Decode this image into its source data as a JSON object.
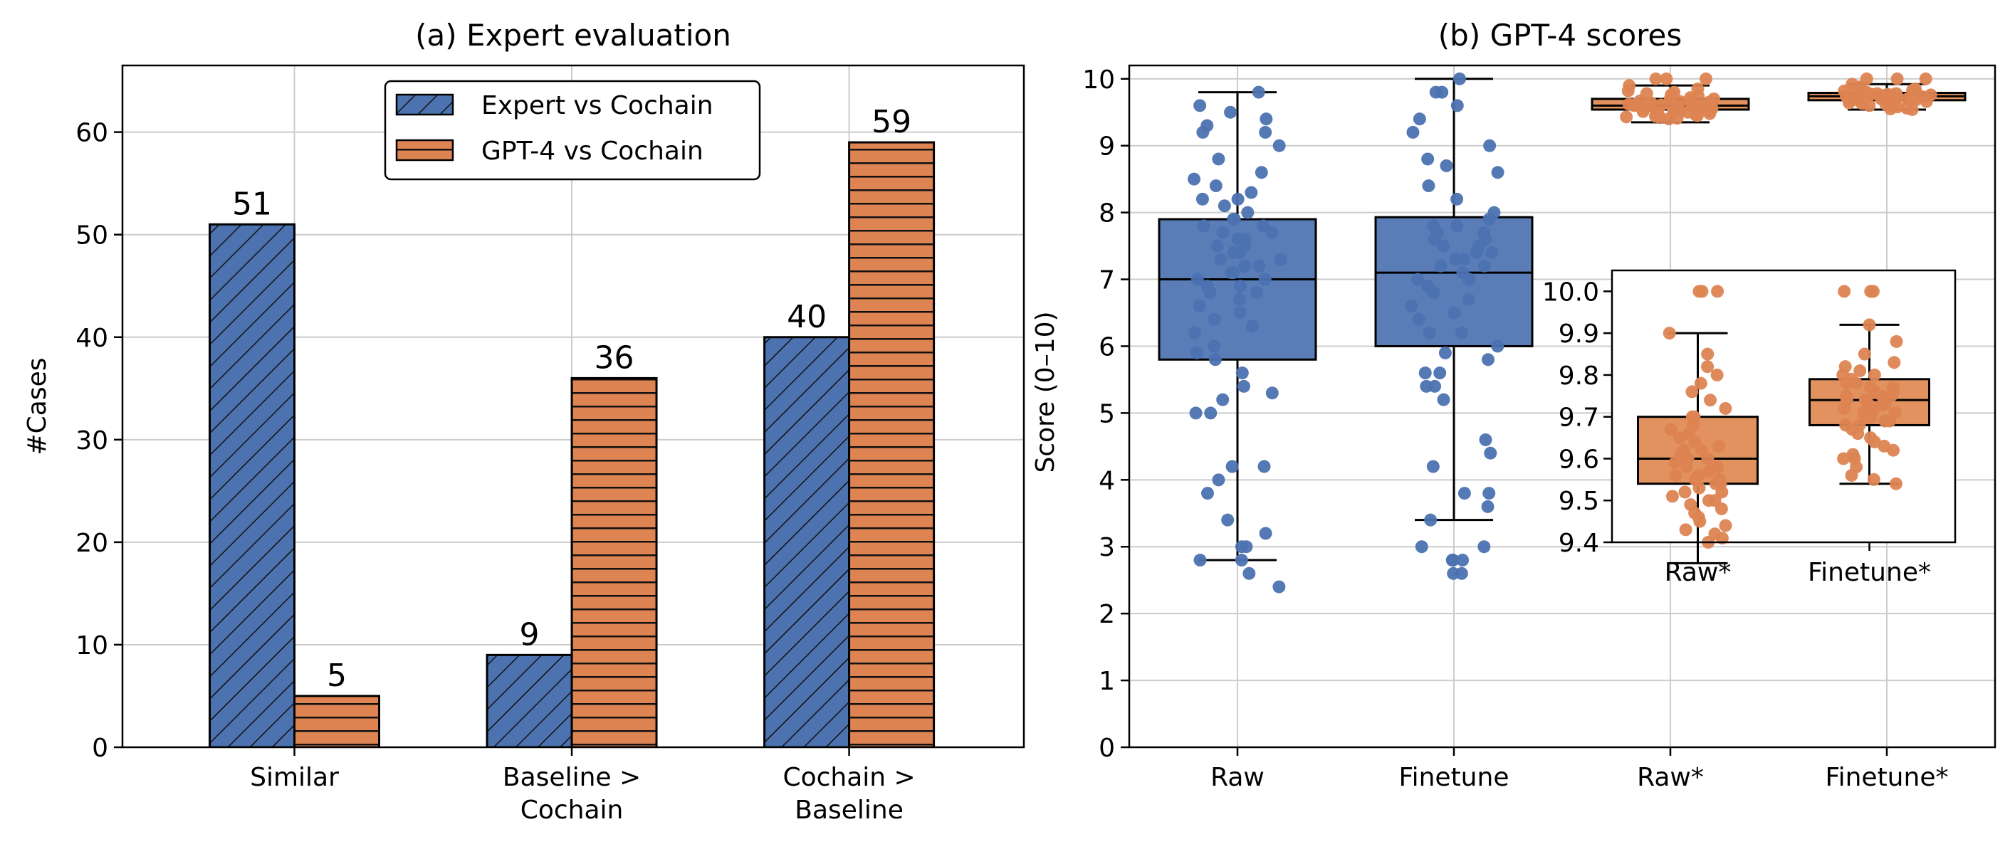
{
  "chart_data": [
    {
      "type": "bar",
      "title": "(a) Expert evaluation",
      "xlabel": "",
      "ylabel": "#Cases",
      "ylim": [
        0,
        66.5
      ],
      "yticks": [
        0,
        10,
        20,
        30,
        40,
        50,
        60
      ],
      "categories": [
        [
          "Similar"
        ],
        [
          "Baseline >",
          "Cochain"
        ],
        [
          "Cochain >",
          "Baseline"
        ]
      ],
      "series": [
        {
          "name": "Expert vs Cochain",
          "values": [
            51,
            9,
            40
          ],
          "color": "#4c72b0",
          "hatch": "diagonal"
        },
        {
          "name": "GPT-4 vs Cochain",
          "values": [
            5,
            36,
            59
          ],
          "color": "#dd8452",
          "hatch": "horizontal"
        }
      ],
      "data_labels": [
        "51",
        "9",
        "40",
        "5",
        "36",
        "59"
      ],
      "legend": "top-center",
      "grid": true
    },
    {
      "type": "box",
      "title": "(b) GPT-4 scores",
      "xlabel": "",
      "ylabel": "Score (0–10)",
      "ylim": [
        0,
        10.2
      ],
      "yticks": [
        0,
        1,
        2,
        3,
        4,
        5,
        6,
        7,
        8,
        9,
        10
      ],
      "categories": [
        "Raw",
        "Finetune",
        "Raw*",
        "Finetune*"
      ],
      "boxes": [
        {
          "category": "Raw",
          "q1": 5.8,
          "median": 7.0,
          "q3": 7.9,
          "whisker_low": 2.8,
          "whisker_high": 9.8,
          "color": "#4c72b0"
        },
        {
          "category": "Finetune",
          "q1": 6.0,
          "median": 7.1,
          "q3": 7.93,
          "whisker_low": 3.4,
          "whisker_high": 10.0,
          "color": "#4c72b0"
        },
        {
          "category": "Raw*",
          "q1": 9.54,
          "median": 9.6,
          "q3": 9.7,
          "whisker_low": 9.35,
          "whisker_high": 9.9,
          "color": "#dd8452"
        },
        {
          "category": "Finetune*",
          "q1": 9.68,
          "median": 9.74,
          "q3": 9.79,
          "whisker_low": 9.54,
          "whisker_high": 9.92,
          "color": "#dd8452"
        }
      ],
      "points": {
        "Raw": [
          9.8,
          9.6,
          9.5,
          9.4,
          9.3,
          9.2,
          9.2,
          9.0,
          8.8,
          8.6,
          8.5,
          8.4,
          8.3,
          8.2,
          8.2,
          8.1,
          8.0,
          7.9,
          7.9,
          7.8,
          7.8,
          7.7,
          7.7,
          7.6,
          7.6,
          7.5,
          7.5,
          7.4,
          7.4,
          7.3,
          7.3,
          7.2,
          7.2,
          7.1,
          7.1,
          7.0,
          7.0,
          6.9,
          6.9,
          6.8,
          6.8,
          6.7,
          6.6,
          6.5,
          6.4,
          6.3,
          6.2,
          6.0,
          5.9,
          5.8,
          5.6,
          5.4,
          5.3,
          5.2,
          5.0,
          5.0,
          4.2,
          4.2,
          4.0,
          3.8,
          3.4,
          3.2,
          3.0,
          3.0,
          2.8,
          2.8,
          2.6,
          2.4
        ],
        "Finetune": [
          10.0,
          9.8,
          9.8,
          9.6,
          9.4,
          9.2,
          9.0,
          8.8,
          8.7,
          8.6,
          8.4,
          8.2,
          8.0,
          7.9,
          7.8,
          7.8,
          7.7,
          7.7,
          7.6,
          7.6,
          7.5,
          7.5,
          7.4,
          7.4,
          7.3,
          7.3,
          7.2,
          7.2,
          7.1,
          7.0,
          7.0,
          6.9,
          6.8,
          6.7,
          6.6,
          6.5,
          6.4,
          6.2,
          6.2,
          6.0,
          5.9,
          5.8,
          5.6,
          5.6,
          5.4,
          5.4,
          5.2,
          4.6,
          4.4,
          4.2,
          3.8,
          3.8,
          3.6,
          3.4,
          3.0,
          3.0,
          2.8,
          2.8,
          2.8,
          2.6,
          2.6
        ],
        "Raw*": [
          10.0,
          10.0,
          10.0,
          9.9,
          9.85,
          9.82,
          9.8,
          9.78,
          9.76,
          9.74,
          9.72,
          9.7,
          9.7,
          9.68,
          9.67,
          9.66,
          9.65,
          9.64,
          9.63,
          9.62,
          9.62,
          9.61,
          9.6,
          9.6,
          9.6,
          9.59,
          9.58,
          9.58,
          9.57,
          9.56,
          9.56,
          9.55,
          9.55,
          9.54,
          9.54,
          9.53,
          9.52,
          9.52,
          9.51,
          9.5,
          9.5,
          9.49,
          9.48,
          9.47,
          9.46,
          9.45,
          9.44,
          9.43,
          9.42,
          9.41,
          9.4
        ],
        "Finetune*": [
          10.0,
          10.0,
          10.0,
          9.92,
          9.88,
          9.85,
          9.83,
          9.82,
          9.81,
          9.8,
          9.8,
          9.79,
          9.78,
          9.78,
          9.77,
          9.77,
          9.76,
          9.76,
          9.75,
          9.75,
          9.75,
          9.74,
          9.74,
          9.74,
          9.73,
          9.73,
          9.73,
          9.72,
          9.72,
          9.71,
          9.71,
          9.7,
          9.7,
          9.69,
          9.69,
          9.68,
          9.68,
          9.67,
          9.66,
          9.65,
          9.64,
          9.63,
          9.62,
          9.61,
          9.6,
          9.6,
          9.58,
          9.56,
          9.55,
          9.54
        ]
      },
      "inset": {
        "categories": [
          "Raw*",
          "Finetune*"
        ],
        "ylim": [
          9.4,
          10.05
        ],
        "yticks": [
          "9.4",
          "9.5",
          "9.6",
          "9.7",
          "9.8",
          "9.9",
          "10.0"
        ]
      },
      "grid": true
    }
  ]
}
